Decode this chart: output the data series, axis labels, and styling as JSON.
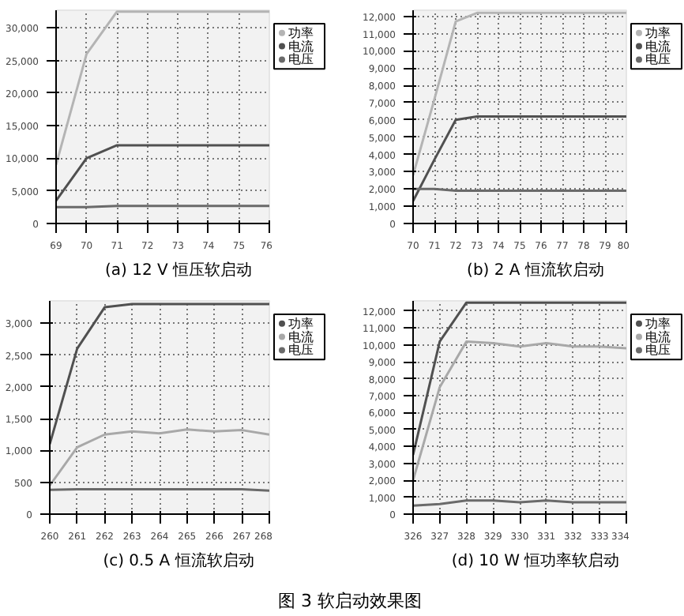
{
  "chart_data": [
    {
      "type": "line",
      "title": "(a) 12 V 恒压软启动",
      "x": [
        69,
        70,
        71,
        72,
        73,
        74,
        75,
        76
      ],
      "xlim": [
        69,
        76
      ],
      "xticks": [
        69,
        70,
        71,
        72,
        73,
        74,
        75,
        76
      ],
      "ylim": [
        0,
        32700
      ],
      "yticks": [
        0,
        {
          "value": 5000,
          "label": "5,000"
        },
        {
          "value": 10000,
          "label": "10,000"
        },
        {
          "value": 15000,
          "label": "15,000"
        },
        {
          "value": 20000,
          "label": "20,000"
        },
        {
          "value": 25000,
          "label": "25,000"
        },
        {
          "value": 30000,
          "label": "30,000"
        }
      ],
      "grid": true,
      "legend": "top right",
      "line_style": "solid",
      "marker": "none",
      "series": [
        {
          "name": "功率",
          "color": "#b4b4b4",
          "values": [
            9000,
            26000,
            32500,
            32500,
            32500,
            32500,
            32500,
            32500
          ]
        },
        {
          "name": "电流",
          "color": "#505050",
          "values": [
            3500,
            10000,
            12000,
            12000,
            12000,
            12000,
            12000,
            12000
          ]
        },
        {
          "name": "电压",
          "color": "#6a6a6a",
          "values": [
            2500,
            2500,
            2700,
            2700,
            2700,
            2700,
            2700,
            2700
          ]
        }
      ]
    },
    {
      "type": "line",
      "title": "(b) 2 A 恒流软启动",
      "x": [
        70,
        71,
        72,
        73,
        74,
        75,
        76,
        77,
        78,
        79,
        80
      ],
      "xlim": [
        70,
        80
      ],
      "xticks": [
        70,
        71,
        72,
        73,
        74,
        75,
        76,
        77,
        78,
        79,
        80
      ],
      "ylim": [
        0,
        12350
      ],
      "yticks": [
        0,
        {
          "value": 1000,
          "label": "1,000"
        },
        {
          "value": 2000,
          "label": "2,000"
        },
        {
          "value": 3000,
          "label": "3,000"
        },
        {
          "value": 4000,
          "label": "4,000"
        },
        {
          "value": 5000,
          "label": "5,000"
        },
        {
          "value": 6000,
          "label": "6,000"
        },
        {
          "value": 7000,
          "label": "7,000"
        },
        {
          "value": 8000,
          "label": "8,000"
        },
        {
          "value": 9000,
          "label": "9,000"
        },
        {
          "value": 10000,
          "label": "10,000"
        },
        {
          "value": 11000,
          "label": "11,000"
        },
        {
          "value": 12000,
          "label": "12,000"
        }
      ],
      "grid": true,
      "legend": "top right",
      "line_style": "solid",
      "marker": "none",
      "series": [
        {
          "name": "功率",
          "color": "#b4b4b4",
          "values": [
            2800,
            7200,
            11700,
            12200,
            12200,
            12200,
            12200,
            12200,
            12200,
            12200,
            12200
          ]
        },
        {
          "name": "电流",
          "color": "#505050",
          "values": [
            1300,
            3700,
            6000,
            6200,
            6200,
            6200,
            6200,
            6200,
            6200,
            6200,
            6200
          ]
        },
        {
          "name": "电压",
          "color": "#6a6a6a",
          "values": [
            2000,
            2000,
            1900,
            1900,
            1900,
            1900,
            1900,
            1900,
            1900,
            1900,
            1900
          ]
        }
      ]
    },
    {
      "type": "line",
      "title": "(c) 0.5 A 恒流软启动",
      "x": [
        260,
        261,
        262,
        263,
        264,
        265,
        266,
        267,
        268
      ],
      "xlim": [
        260,
        268
      ],
      "xticks": [
        260,
        261,
        262,
        263,
        264,
        265,
        266,
        267,
        268
      ],
      "ylim": [
        0,
        3350
      ],
      "yticks": [
        0,
        500,
        {
          "value": 1000,
          "label": "1,000"
        },
        {
          "value": 1500,
          "label": "1,500"
        },
        {
          "value": 2000,
          "label": "2,000"
        },
        {
          "value": 2500,
          "label": "2,500"
        },
        {
          "value": 3000,
          "label": "3,000"
        }
      ],
      "grid": true,
      "legend": "top right",
      "line_style": "solid",
      "marker": "none",
      "series": [
        {
          "name": "功率",
          "color": "#505050",
          "values": [
            1100,
            2600,
            3250,
            3300,
            3300,
            3300,
            3300,
            3300,
            3300
          ]
        },
        {
          "name": "电流",
          "color": "#a8a8a8",
          "values": [
            450,
            1050,
            1250,
            1300,
            1270,
            1330,
            1300,
            1320,
            1250
          ]
        },
        {
          "name": "电压",
          "color": "#6a6a6a",
          "values": [
            380,
            390,
            390,
            390,
            390,
            390,
            390,
            390,
            370
          ]
        }
      ]
    },
    {
      "type": "line",
      "title": "(d) 10 W 恒功率软启动",
      "x": [
        326,
        327,
        328,
        329,
        330,
        331,
        332,
        333,
        334
      ],
      "xlim": [
        326,
        334
      ],
      "xticks": [
        326,
        327,
        328,
        329,
        330,
        331,
        332,
        333,
        334
      ],
      "ylim": [
        0,
        12600
      ],
      "yticks": [
        0,
        {
          "value": 1000,
          "label": "1,000"
        },
        {
          "value": 2000,
          "label": "2,000"
        },
        {
          "value": 3000,
          "label": "3,000"
        },
        {
          "value": 4000,
          "label": "4,000"
        },
        {
          "value": 5000,
          "label": "5,000"
        },
        {
          "value": 6000,
          "label": "6,000"
        },
        {
          "value": 7000,
          "label": "7,000"
        },
        {
          "value": 8000,
          "label": "8,000"
        },
        {
          "value": 9000,
          "label": "9,000"
        },
        {
          "value": 10000,
          "label": "10,000"
        },
        {
          "value": 11000,
          "label": "11,000"
        },
        {
          "value": 12000,
          "label": "12,000"
        }
      ],
      "grid": true,
      "legend": "top right",
      "line_style": "solid",
      "marker": "none",
      "annotations": [
        "图 3 软启动效果图"
      ],
      "series": [
        {
          "name": "功率",
          "color": "#505050",
          "values": [
            3500,
            10200,
            12500,
            12500,
            12500,
            12500,
            12500,
            12500,
            12500
          ]
        },
        {
          "name": "电流",
          "color": "#a8a8a8",
          "values": [
            2000,
            7500,
            10200,
            10100,
            9900,
            10100,
            9900,
            9900,
            9800
          ]
        },
        {
          "name": "电压",
          "color": "#6a6a6a",
          "values": [
            500,
            600,
            800,
            800,
            700,
            800,
            700,
            700,
            700
          ]
        }
      ]
    }
  ]
}
